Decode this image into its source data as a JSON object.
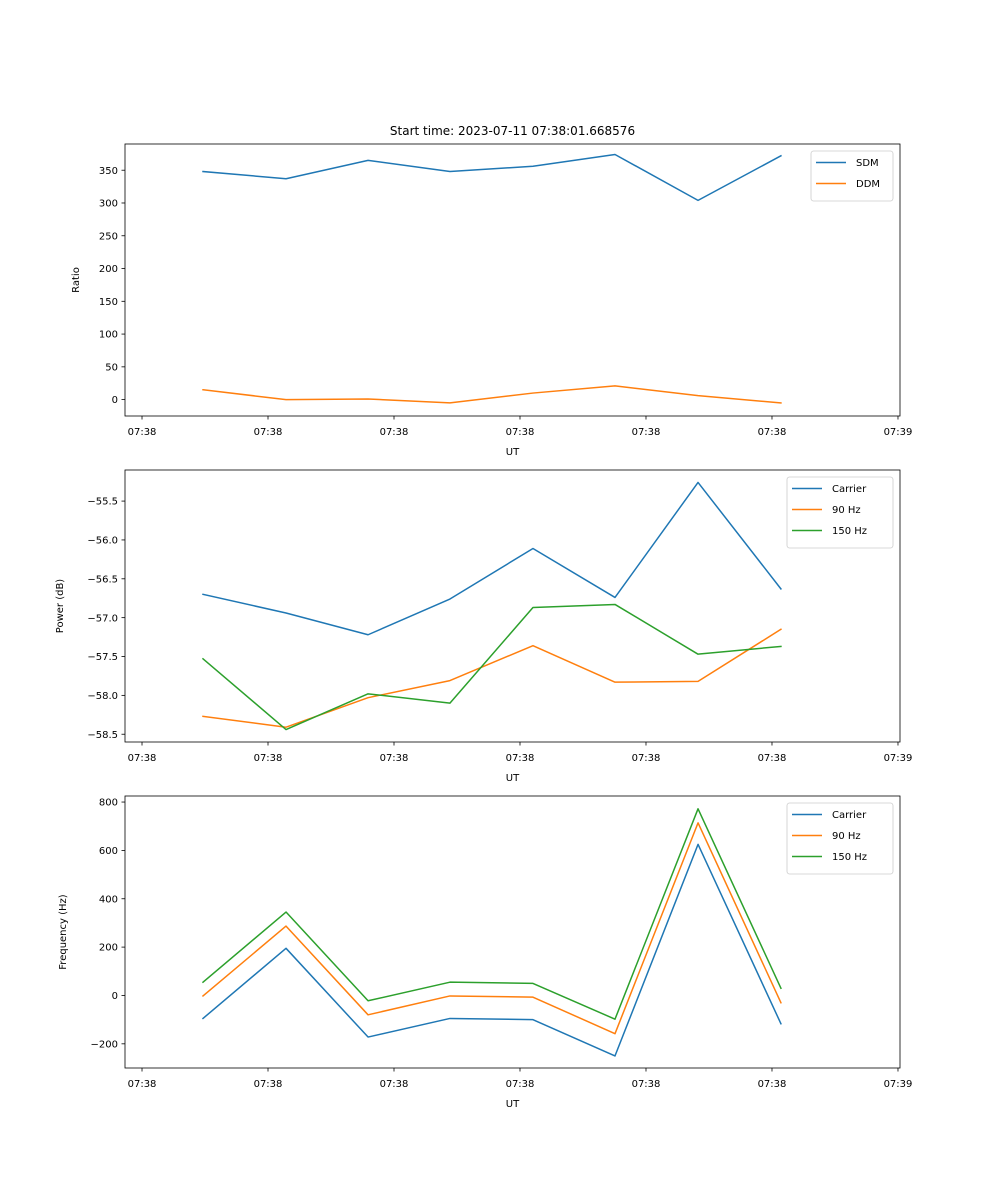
{
  "figure_title": "Start time: 2023-07-11 07:38:01.668576",
  "chart_data": [
    {
      "type": "line",
      "title": "Start time: 2023-07-11 07:38:01.668576",
      "xlabel": "UT",
      "ylabel": "Ratio",
      "x_units": "seconds after 07:38:00",
      "xlim": [
        -1.35,
        60.16
      ],
      "ylim": [
        -25,
        390
      ],
      "xticks": [
        0,
        10,
        20,
        30,
        40,
        50,
        60
      ],
      "xtick_labels": [
        "07:38",
        "07:38",
        "07:38",
        "07:38",
        "07:38",
        "07:38",
        "07:39"
      ],
      "yticks": [
        0,
        50,
        100,
        150,
        200,
        250,
        300,
        350
      ],
      "ytick_labels": [
        "0",
        "50",
        "100",
        "150",
        "200",
        "250",
        "300",
        "350"
      ],
      "x": [
        4.84,
        11.43,
        17.94,
        24.44,
        31.03,
        37.54,
        44.13,
        50.71
      ],
      "legend_position": "top-right",
      "grid": false,
      "series": [
        {
          "name": "SDM",
          "color": "#1f77b4",
          "values": [
            348,
            337,
            365,
            348,
            356,
            374,
            304,
            372
          ]
        },
        {
          "name": "DDM",
          "color": "#ff7f0e",
          "values": [
            15,
            0,
            1,
            -5,
            10,
            21,
            6,
            -5
          ]
        }
      ]
    },
    {
      "type": "line",
      "title": "",
      "xlabel": "UT",
      "ylabel": "Power (dB)",
      "x_units": "seconds after 07:38:00",
      "xlim": [
        -1.35,
        60.16
      ],
      "ylim": [
        -58.6,
        -55.1
      ],
      "xticks": [
        0,
        10,
        20,
        30,
        40,
        50,
        60
      ],
      "xtick_labels": [
        "07:38",
        "07:38",
        "07:38",
        "07:38",
        "07:38",
        "07:38",
        "07:39"
      ],
      "yticks": [
        -58.5,
        -58.0,
        -57.5,
        -57.0,
        -56.5,
        -56.0,
        -55.5
      ],
      "ytick_labels": [
        "−58.5",
        "−58.0",
        "−57.5",
        "−57.0",
        "−56.5",
        "−56.0",
        "−55.5"
      ],
      "x": [
        4.84,
        11.43,
        17.94,
        24.44,
        31.03,
        37.54,
        44.13,
        50.71
      ],
      "legend_position": "top-right",
      "grid": false,
      "series": [
        {
          "name": "Carrier",
          "color": "#1f77b4",
          "values": [
            -56.7,
            -56.94,
            -57.22,
            -56.76,
            -56.11,
            -56.74,
            -55.26,
            -56.63
          ]
        },
        {
          "name": "90 Hz",
          "color": "#ff7f0e",
          "values": [
            -58.27,
            -58.41,
            -58.03,
            -57.81,
            -57.36,
            -57.83,
            -57.82,
            -57.15
          ]
        },
        {
          "name": "150 Hz",
          "color": "#2ca02c",
          "values": [
            -57.53,
            -58.44,
            -57.98,
            -58.1,
            -56.87,
            -56.83,
            -57.47,
            -57.37
          ]
        }
      ]
    },
    {
      "type": "line",
      "title": "",
      "xlabel": "UT",
      "ylabel": "Frequency (Hz)",
      "x_units": "seconds after 07:38:00",
      "xlim": [
        -1.35,
        60.16
      ],
      "ylim": [
        -300,
        825
      ],
      "xticks": [
        0,
        10,
        20,
        30,
        40,
        50,
        60
      ],
      "xtick_labels": [
        "07:38",
        "07:38",
        "07:38",
        "07:38",
        "07:38",
        "07:38",
        "07:39"
      ],
      "yticks": [
        -200,
        0,
        200,
        400,
        600,
        800
      ],
      "ytick_labels": [
        "−200",
        "0",
        "200",
        "400",
        "600",
        "800"
      ],
      "x": [
        4.84,
        11.43,
        17.94,
        24.44,
        31.03,
        37.54,
        44.13,
        50.71
      ],
      "legend_position": "top-right",
      "grid": false,
      "series": [
        {
          "name": "Carrier",
          "color": "#1f77b4",
          "values": [
            -95,
            195,
            -172,
            -95,
            -100,
            -250,
            625,
            -117
          ]
        },
        {
          "name": "90 Hz",
          "color": "#ff7f0e",
          "values": [
            -2,
            287,
            -80,
            -2,
            -7,
            -158,
            714,
            -30
          ]
        },
        {
          "name": "150 Hz",
          "color": "#2ca02c",
          "values": [
            55,
            345,
            -22,
            55,
            50,
            -98,
            772,
            30
          ]
        }
      ]
    }
  ]
}
